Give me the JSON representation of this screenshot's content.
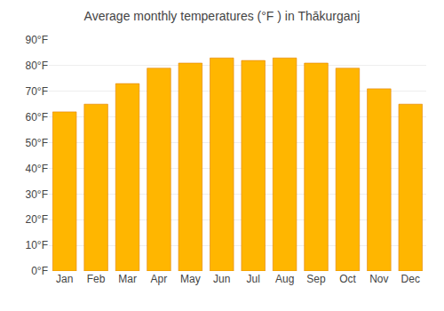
{
  "chart_data": {
    "type": "bar",
    "title": "Average monthly temperatures (°F ) in Thākurganj",
    "categories": [
      "Jan",
      "Feb",
      "Mar",
      "Apr",
      "May",
      "Jun",
      "Jul",
      "Aug",
      "Sep",
      "Oct",
      "Nov",
      "Dec"
    ],
    "values": [
      62,
      65,
      73,
      79,
      81,
      83,
      82,
      83,
      81,
      79,
      71,
      65
    ],
    "color": "#FFB600",
    "ylim": [
      0,
      90
    ],
    "yticks": [
      {
        "value": 0,
        "label": "0°F"
      },
      {
        "value": 10,
        "label": "10°F"
      },
      {
        "value": 20,
        "label": "20°F"
      },
      {
        "value": 30,
        "label": "30°F"
      },
      {
        "value": 40,
        "label": "40°F"
      },
      {
        "value": 50,
        "label": "50°F"
      },
      {
        "value": 60,
        "label": "60°F"
      },
      {
        "value": 70,
        "label": "70°F"
      },
      {
        "value": 80,
        "label": "80°F"
      },
      {
        "value": 90,
        "label": "90°F"
      }
    ],
    "grid": true
  }
}
